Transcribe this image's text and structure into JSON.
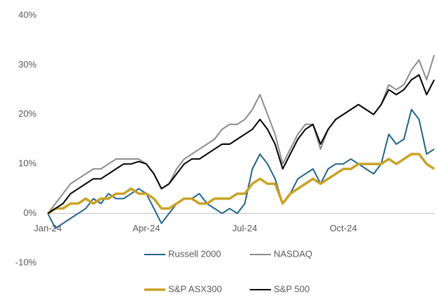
{
  "chart_data": {
    "type": "line",
    "categories": [
      "Jan-24",
      null,
      null,
      null,
      null,
      null,
      null,
      null,
      null,
      null,
      null,
      null,
      null,
      "Apr-24",
      null,
      null,
      null,
      null,
      null,
      null,
      null,
      null,
      null,
      null,
      null,
      null,
      "Jul-24",
      null,
      null,
      null,
      null,
      null,
      null,
      null,
      null,
      null,
      null,
      null,
      null,
      "Oct-24",
      null,
      null,
      null,
      null,
      null,
      null,
      null,
      null,
      null,
      null,
      null,
      null
    ],
    "ylim": [
      -10,
      40
    ],
    "yticks": [
      {
        "value": -10,
        "label": "-10%"
      },
      {
        "value": 0,
        "label": "0%"
      },
      {
        "value": 10,
        "label": "10%"
      },
      {
        "value": 20,
        "label": "20%"
      },
      {
        "value": 30,
        "label": "30%"
      },
      {
        "value": 40,
        "label": "40%"
      }
    ],
    "grid": false,
    "legend": "bottom",
    "series": [
      {
        "name": "Russell 2000",
        "color": "#22648a",
        "width": 2,
        "values": [
          0,
          -3,
          -2,
          -1,
          0,
          1,
          3,
          2,
          4,
          3,
          3,
          4,
          5,
          4,
          1,
          -2,
          0,
          2,
          3,
          3,
          4,
          2,
          1,
          0,
          1,
          0,
          2,
          9,
          12,
          10,
          7,
          2,
          4,
          7,
          8,
          9,
          6,
          9,
          10,
          10,
          11,
          10,
          9,
          8,
          10,
          16,
          14,
          15,
          21,
          19,
          12,
          13
        ]
      },
      {
        "name": "NASDAQ",
        "color": "#8c8c8c",
        "width": 2,
        "values": [
          0,
          2,
          4,
          6,
          7,
          8,
          9,
          9,
          10,
          11,
          11,
          11,
          11,
          10,
          8,
          5,
          6,
          9,
          11,
          12,
          13,
          14,
          15,
          17,
          18,
          18,
          19,
          21,
          24,
          20,
          16,
          10,
          13,
          16,
          18,
          18,
          13,
          17,
          19,
          20,
          21,
          22,
          21,
          20,
          22,
          26,
          25,
          26,
          29,
          31,
          27,
          32
        ]
      },
      {
        "name": "S&P ASX300",
        "color": "#c9a227",
        "width": 3.5,
        "values": [
          0,
          1,
          1,
          2,
          2,
          3,
          2,
          3,
          3,
          4,
          4,
          5,
          4,
          4,
          3,
          1,
          1,
          2,
          3,
          3,
          2,
          2,
          3,
          3,
          3,
          4,
          4,
          6,
          7,
          6,
          6,
          2,
          4,
          5,
          6,
          7,
          6,
          7,
          8,
          9,
          9,
          10,
          10,
          10,
          10,
          11,
          10,
          11,
          12,
          12,
          10,
          9
        ]
      },
      {
        "name": "S&P 500",
        "color": "#000000",
        "width": 2,
        "values": [
          0,
          1,
          2,
          4,
          5,
          6,
          7,
          7,
          8,
          9,
          10,
          10,
          10.5,
          10,
          8,
          5,
          6,
          8,
          10,
          11,
          11,
          12,
          13,
          14,
          14,
          15,
          16,
          17,
          19,
          17,
          14,
          9,
          12,
          15,
          17,
          18,
          14,
          17,
          19,
          20,
          21,
          22,
          21,
          20,
          22,
          25,
          24,
          25,
          27,
          28,
          24,
          27
        ]
      }
    ]
  }
}
